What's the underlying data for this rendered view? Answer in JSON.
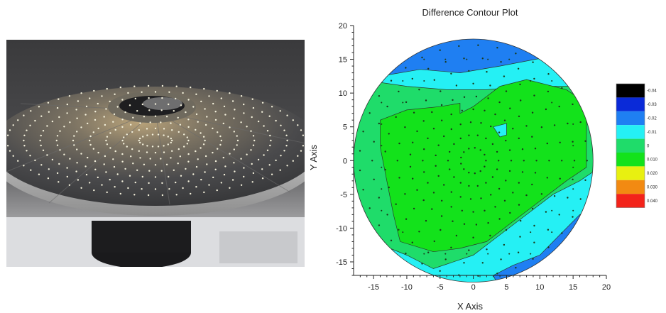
{
  "corner_text": "",
  "chart_data": {
    "type": "contour",
    "title": "Difference Contour Plot",
    "xlabel": "X Axis",
    "ylabel": "Y Axis",
    "xlim": [
      -18,
      20
    ],
    "ylim": [
      -17,
      20
    ],
    "x_ticks": [
      -15,
      -10,
      -5,
      0,
      5,
      10,
      15,
      20
    ],
    "y_ticks": [
      -15,
      -10,
      -5,
      0,
      5,
      10,
      15,
      20
    ],
    "grid": false,
    "legend": {
      "placement": "right",
      "levels": [
        {
          "label": "-0.04",
          "color": "#000000"
        },
        {
          "label": "-0.03",
          "color": "#0a2ad8"
        },
        {
          "label": "-0.02",
          "color": "#1f7ff2"
        },
        {
          "label": "-0.01",
          "color": "#25f0f4"
        },
        {
          "label": "0",
          "color": "#1fdc6a"
        },
        {
          "label": "0.010",
          "color": "#13e21b"
        },
        {
          "label": "0.020",
          "color": "#e8f010"
        },
        {
          "label": "0.030",
          "color": "#f28a12"
        },
        {
          "label": "0.040",
          "color": "#f3231a"
        }
      ]
    },
    "regions": [
      {
        "level": "-0.03",
        "color": "#0a2ad8",
        "location": "top edge near x=-3"
      },
      {
        "level": "-0.02",
        "color": "#1f7ff2",
        "location": "upper rim and lower-right rim"
      },
      {
        "level": "-0.01",
        "color": "#25f0f4",
        "location": "outer ring band"
      },
      {
        "level": "0",
        "color": "#1fdc6a",
        "location": "mid ring band"
      },
      {
        "level": "0.010",
        "color": "#13e21b",
        "location": "center plateau"
      }
    ],
    "disk_radius": 18
  }
}
